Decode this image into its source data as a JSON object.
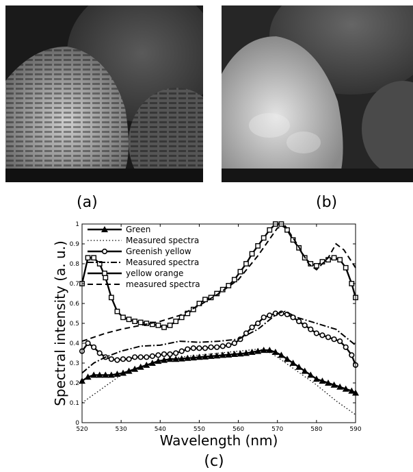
{
  "captions": {
    "a": "(a)",
    "b": "(b)",
    "c": "(c)"
  },
  "chart_data": {
    "type": "line",
    "xlabel": "Wavelength (nm)",
    "ylabel": "Spectral intensity (a. u.)",
    "xlim": [
      520,
      590
    ],
    "ylim": [
      0,
      1
    ],
    "xticks": [
      520,
      530,
      540,
      550,
      560,
      570,
      580,
      590
    ],
    "yticks": [
      0,
      0.1,
      0.2,
      0.3,
      0.4,
      0.5,
      0.6,
      0.7,
      0.8,
      0.9,
      1
    ],
    "legend_position": "top-left",
    "grid": false,
    "series": [
      {
        "name": "Green",
        "style": "solid",
        "marker": "triangle",
        "x": [
          520,
          521.5,
          523,
          524.5,
          526,
          527.5,
          529,
          530.5,
          532,
          533.5,
          535,
          536.5,
          538,
          539.5,
          541,
          542.5,
          544,
          545.5,
          547,
          548.5,
          550,
          551.5,
          553,
          554.5,
          556,
          557.5,
          559,
          560.5,
          562,
          563.5,
          565,
          566.5,
          568,
          569.5,
          571,
          572.5,
          574,
          575.5,
          577,
          578.5,
          580,
          581.5,
          583,
          584.5,
          586,
          587.5,
          589,
          590
        ],
        "y": [
          0.21,
          0.23,
          0.24,
          0.24,
          0.24,
          0.24,
          0.245,
          0.25,
          0.26,
          0.27,
          0.28,
          0.29,
          0.3,
          0.31,
          0.315,
          0.32,
          0.32,
          0.322,
          0.325,
          0.327,
          0.33,
          0.332,
          0.335,
          0.337,
          0.34,
          0.342,
          0.345,
          0.347,
          0.35,
          0.355,
          0.36,
          0.365,
          0.365,
          0.355,
          0.34,
          0.32,
          0.3,
          0.28,
          0.26,
          0.24,
          0.22,
          0.21,
          0.2,
          0.19,
          0.18,
          0.17,
          0.16,
          0.15
        ]
      },
      {
        "name": "Measured spectra",
        "style": "dotted",
        "marker": "none",
        "x": [
          520,
          525,
          530,
          535,
          540,
          545,
          550,
          555,
          560,
          565,
          567,
          570,
          575,
          580,
          585,
          590
        ],
        "y": [
          0.1,
          0.17,
          0.24,
          0.28,
          0.31,
          0.33,
          0.34,
          0.35,
          0.36,
          0.37,
          0.365,
          0.33,
          0.26,
          0.19,
          0.11,
          0.04
        ]
      },
      {
        "name": "Greenish yellow",
        "style": "solid",
        "marker": "circle",
        "x": [
          520,
          521.5,
          523,
          524.5,
          526,
          527.5,
          529,
          530.5,
          532,
          533.5,
          535,
          536.5,
          538,
          539.5,
          541,
          542.5,
          544,
          545.5,
          547,
          548.5,
          550,
          551.5,
          553,
          554.5,
          556,
          557.5,
          559,
          560.5,
          562,
          563.5,
          565,
          566.5,
          568,
          569.5,
          571,
          572.5,
          574,
          575.5,
          577,
          578.5,
          580,
          581.5,
          583,
          584.5,
          586,
          587.5,
          589,
          590
        ],
        "y": [
          0.36,
          0.4,
          0.38,
          0.35,
          0.33,
          0.32,
          0.315,
          0.32,
          0.32,
          0.33,
          0.33,
          0.33,
          0.335,
          0.34,
          0.345,
          0.345,
          0.35,
          0.36,
          0.37,
          0.375,
          0.375,
          0.375,
          0.38,
          0.38,
          0.385,
          0.39,
          0.4,
          0.42,
          0.45,
          0.48,
          0.5,
          0.53,
          0.54,
          0.55,
          0.55,
          0.545,
          0.53,
          0.51,
          0.49,
          0.47,
          0.45,
          0.44,
          0.43,
          0.42,
          0.41,
          0.38,
          0.34,
          0.29
        ]
      },
      {
        "name": "Measured spectra",
        "style": "dashdot",
        "marker": "none",
        "x": [
          520,
          523,
          526,
          530,
          535,
          540,
          545,
          550,
          555,
          560,
          565,
          570,
          572,
          575,
          580,
          585,
          590
        ],
        "y": [
          0.25,
          0.3,
          0.33,
          0.36,
          0.385,
          0.39,
          0.41,
          0.405,
          0.41,
          0.42,
          0.47,
          0.55,
          0.56,
          0.53,
          0.5,
          0.47,
          0.39
        ]
      },
      {
        "name": "yellow orange",
        "style": "solid",
        "marker": "square",
        "x": [
          520,
          521.5,
          523,
          524.5,
          526,
          527.5,
          529,
          530.5,
          532,
          533.5,
          535,
          536.5,
          538,
          539.5,
          541,
          542.5,
          544,
          545.5,
          547,
          548.5,
          550,
          551.5,
          553,
          554.5,
          556,
          557.5,
          559,
          560.5,
          562,
          563.5,
          565,
          566.5,
          568,
          569.5,
          571,
          572.5,
          574,
          575.5,
          577,
          578.5,
          580,
          581.5,
          583,
          584.5,
          586,
          587.5,
          589,
          590
        ],
        "y": [
          0.7,
          0.83,
          0.83,
          0.8,
          0.73,
          0.63,
          0.56,
          0.53,
          0.52,
          0.51,
          0.505,
          0.5,
          0.495,
          0.49,
          0.48,
          0.49,
          0.51,
          0.53,
          0.55,
          0.57,
          0.6,
          0.62,
          0.63,
          0.65,
          0.67,
          0.69,
          0.72,
          0.76,
          0.8,
          0.85,
          0.89,
          0.93,
          0.97,
          1.0,
          1.0,
          0.97,
          0.92,
          0.88,
          0.83,
          0.8,
          0.79,
          0.81,
          0.82,
          0.83,
          0.82,
          0.78,
          0.7,
          0.63
        ]
      },
      {
        "name": "measured spectra",
        "style": "dashed",
        "marker": "none",
        "x": [
          520,
          523,
          526,
          530,
          535,
          540,
          545,
          550,
          555,
          560,
          565,
          570,
          572,
          575,
          578,
          580,
          583,
          585,
          587,
          590
        ],
        "y": [
          0.41,
          0.43,
          0.45,
          0.47,
          0.49,
          0.51,
          0.54,
          0.59,
          0.65,
          0.72,
          0.84,
          0.98,
          0.99,
          0.9,
          0.8,
          0.77,
          0.83,
          0.9,
          0.87,
          0.78
        ]
      }
    ]
  }
}
